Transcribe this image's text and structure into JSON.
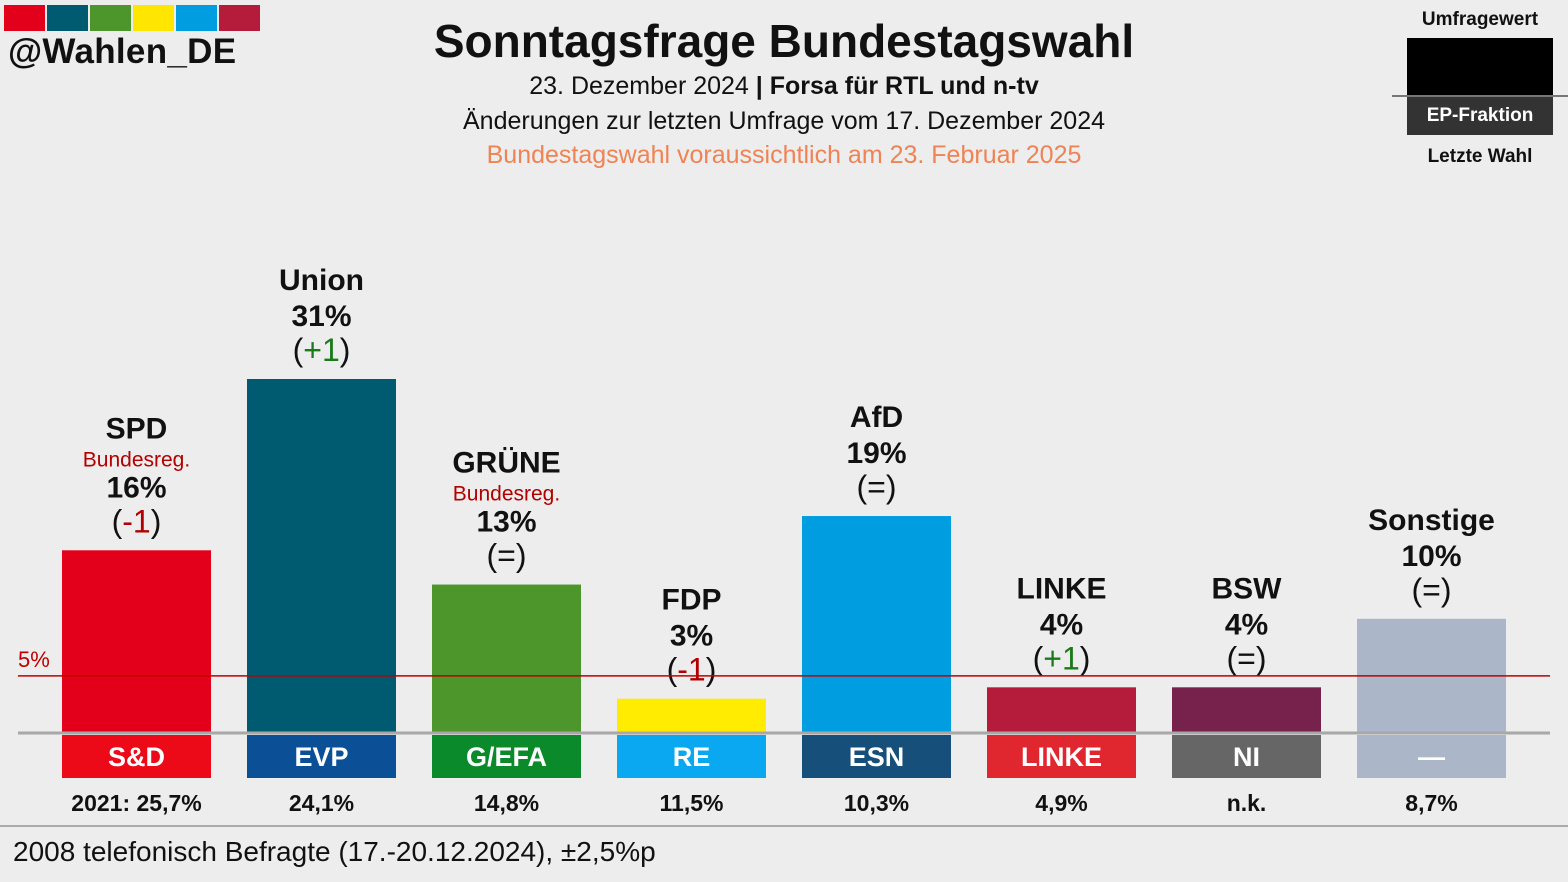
{
  "header": {
    "color_strip": [
      "#e3001b",
      "#005a70",
      "#4c962c",
      "#ffe600",
      "#009ee0",
      "#b51c3c"
    ],
    "handle": "@Wahlen_DE",
    "title": "Sonntagsfrage Bundestagswahl",
    "date": "23. Dezember 2024",
    "separator": "|",
    "institute": "Forsa für RTL und n-tv",
    "change_line": "Änderungen zur letzten Umfrage vom 17. Dezember 2024",
    "election_note": "Bundestagswahl voraussichtlich am 23. Februar 2025"
  },
  "legend": {
    "top_label": "Umfragewert",
    "middle_label": "EP-Fraktion",
    "bottom_label": "Letzte Wahl"
  },
  "chart_data": {
    "type": "bar",
    "categories": [
      "SPD",
      "Union",
      "GRÜNE",
      "FDP",
      "AfD",
      "LINKE",
      "BSW",
      "Sonstige"
    ],
    "values": [
      16,
      31,
      13,
      3,
      19,
      4,
      4,
      10
    ],
    "value_labels": [
      "16%",
      "31%",
      "13%",
      "3%",
      "19%",
      "4%",
      "4%",
      "10%"
    ],
    "changes": [
      "-1",
      "+1",
      "=",
      "-1",
      "=",
      "+1",
      "=",
      "="
    ],
    "change_colors": [
      "#b20000",
      "#1a7a1a",
      "#111111",
      "#b20000",
      "#111111",
      "#1a7a1a",
      "#111111",
      "#111111"
    ],
    "government_labels": [
      "Bundesreg.",
      "",
      "Bundesreg.",
      "",
      "",
      "",
      "",
      ""
    ],
    "bar_colors": [
      "#e3001b",
      "#005a70",
      "#4c962c",
      "#ffec00",
      "#009ee0",
      "#b51c3c",
      "#77224c",
      "#abb6c9"
    ],
    "ep_groups": [
      "S&D",
      "EVP",
      "G/EFA",
      "RE",
      "ESN",
      "LINKE",
      "NI",
      "—"
    ],
    "ep_colors": [
      "#ec0a19",
      "#0b4f96",
      "#0a8a2a",
      "#0aa8f0",
      "#164f7a",
      "#e0262e",
      "#666666",
      "#abb6c9"
    ],
    "last_election": [
      "2021: 25,7%",
      "24,1%",
      "14,8%",
      "11,5%",
      "10,3%",
      "4,9%",
      "n.k.",
      "8,7%"
    ],
    "threshold": 5,
    "threshold_label": "5%",
    "threshold_color": "#c00000",
    "ylim": [
      0,
      31
    ]
  },
  "footer": {
    "note": "2008 telefonisch Befragte (17.-20.12.2024), ±2,5%p"
  }
}
